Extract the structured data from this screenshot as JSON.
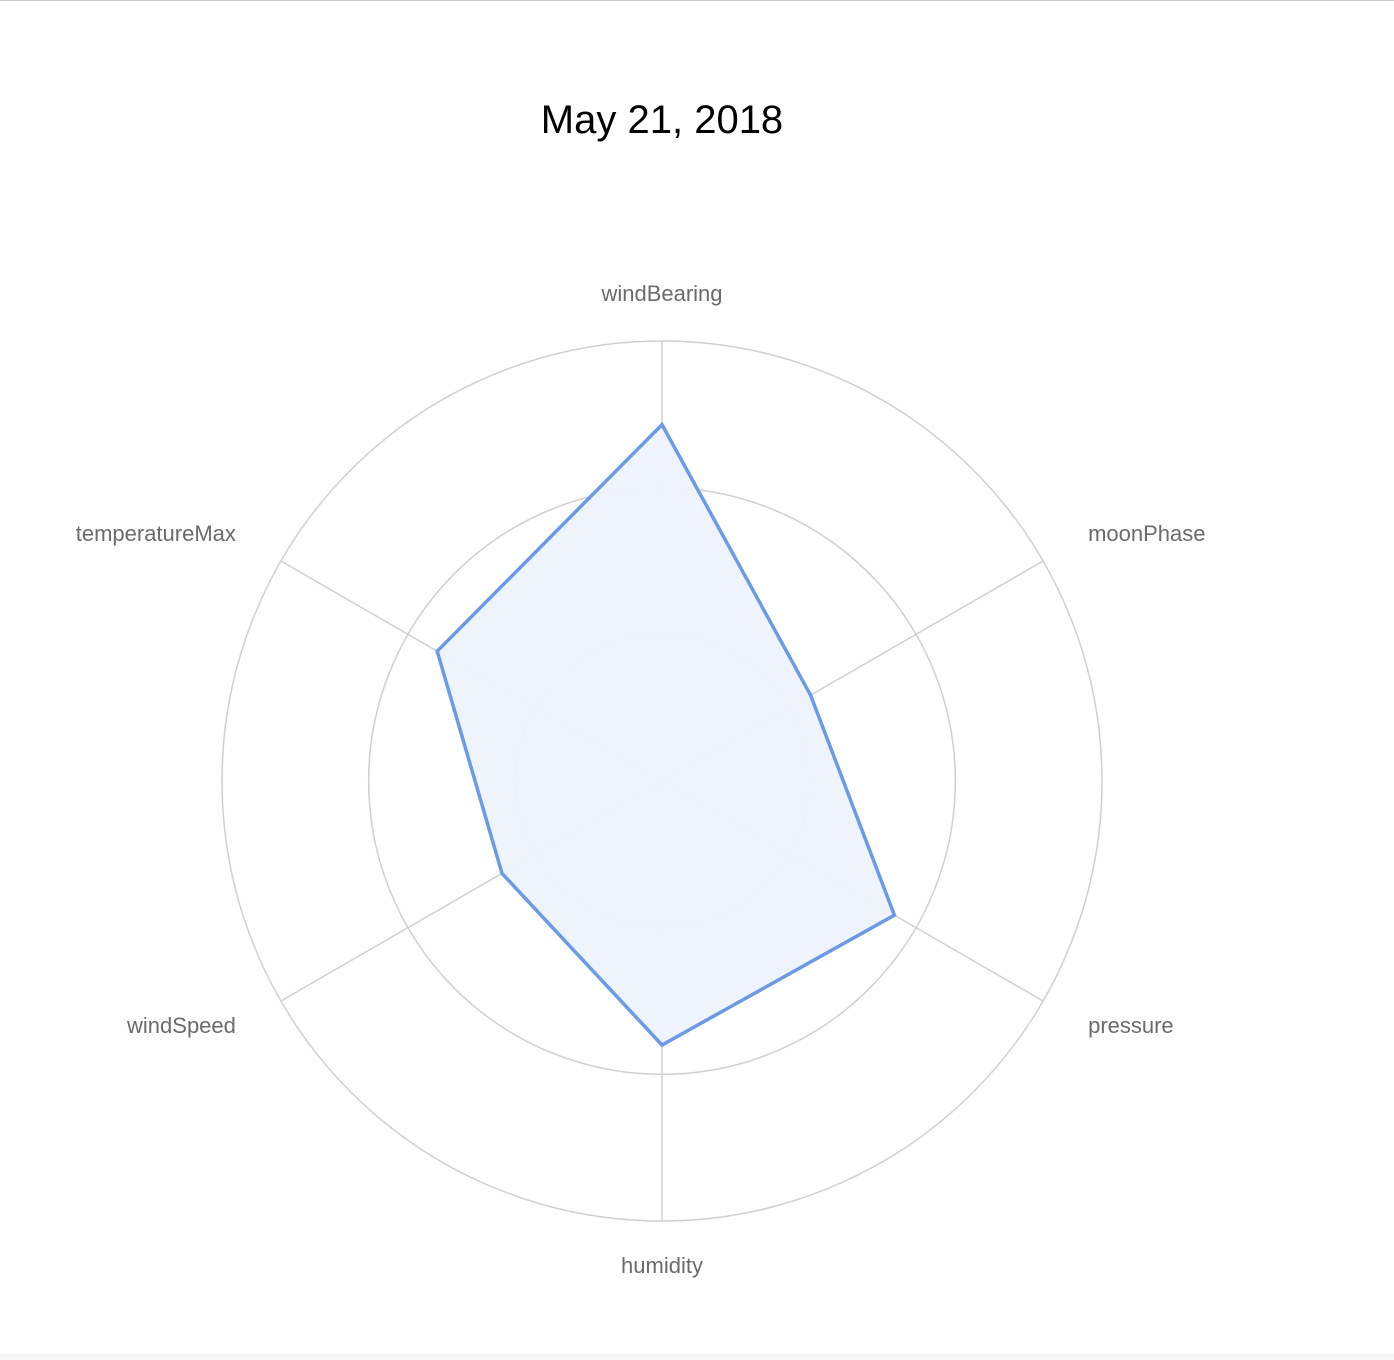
{
  "chart_data": {
    "type": "radar",
    "title": "May 21, 2018",
    "axes": [
      "windBearing",
      "moonPhase",
      "pressure",
      "humidity",
      "windSpeed",
      "temperatureMax"
    ],
    "series": [
      {
        "values": [
          0.81,
          0.39,
          0.61,
          0.6,
          0.42,
          0.59
        ]
      }
    ],
    "rings": 3,
    "range": [
      0,
      1
    ],
    "colors": {
      "line": "#6b9ae6",
      "fill": "#eef3fc",
      "grid": "#d0d0d0",
      "label": "#6b6b6b"
    },
    "legend": "none"
  }
}
